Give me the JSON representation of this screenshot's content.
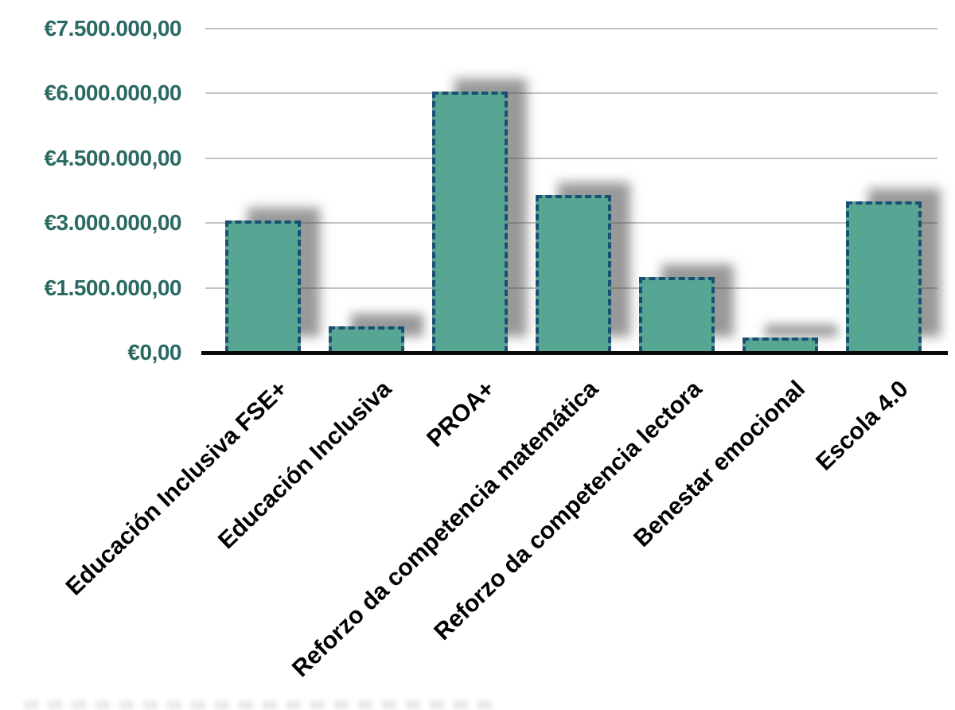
{
  "chart_data": {
    "type": "bar",
    "categories": [
      "Educación Inclusiva FSE+",
      "Educación Inclusiva",
      "PROA+",
      "Reforzo da competencia matemática",
      "Reforzo da competencia lectora",
      "Benestar emocional",
      "Escola 4.0"
    ],
    "values": [
      3050000,
      600000,
      6050000,
      3650000,
      1750000,
      350000,
      3500000
    ],
    "title": "",
    "xlabel": "",
    "ylabel": "",
    "ylim": [
      0,
      7500000
    ],
    "grid": true,
    "legend": false,
    "y_ticks": [
      {
        "label": "€7.500.000,00",
        "value": 7500000
      },
      {
        "label": "€6.000.000,00",
        "value": 6000000
      },
      {
        "label": "€4.500.000,00",
        "value": 4500000
      },
      {
        "label": "€3.000.000,00",
        "value": 3000000
      },
      {
        "label": "€1.500.000,00",
        "value": 1500000
      },
      {
        "label": "€0,00",
        "value": 0
      }
    ],
    "currency_format": "european",
    "colors": {
      "bar_fill": "#57a694",
      "bar_border": "#1e4d73",
      "bar_shadow": "rgba(70,70,70,0.55)",
      "gridline": "#c3c3c3",
      "axis_line": "#0a0a0a",
      "y_tick_text": "#2b6a63",
      "x_tick_text": "#000000",
      "background": "#ffffff"
    }
  }
}
